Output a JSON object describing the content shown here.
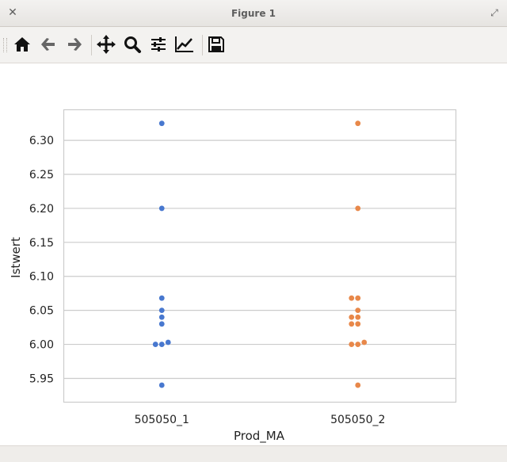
{
  "window": {
    "title": "Figure 1",
    "close_icon": "close-icon",
    "maximize_icon": "maximize-icon"
  },
  "toolbar": {
    "items": [
      {
        "name": "home",
        "icon": "home-icon"
      },
      {
        "name": "back",
        "icon": "arrow-left-icon"
      },
      {
        "name": "forward",
        "icon": "arrow-right-icon"
      },
      {
        "name": "pan",
        "icon": "move-icon"
      },
      {
        "name": "zoom",
        "icon": "search-icon"
      },
      {
        "name": "configure-subplots",
        "icon": "sliders-icon"
      },
      {
        "name": "edit-axis",
        "icon": "line-chart-icon"
      },
      {
        "name": "save",
        "icon": "save-icon"
      }
    ]
  },
  "chart_data": {
    "type": "scatter",
    "subtype": "swarm",
    "title": "",
    "xlabel": "Prod_MA",
    "ylabel": "Istwert",
    "categories": [
      "505050_1",
      "505050_2"
    ],
    "ylim": [
      5.915,
      6.345
    ],
    "yticks": [
      "5.95",
      "6.00",
      "6.05",
      "6.10",
      "6.15",
      "6.20",
      "6.25",
      "6.30"
    ],
    "grid": "horizontal",
    "series": [
      {
        "category": "505050_1",
        "color": "#4878cf",
        "values": [
          6.325,
          6.2,
          6.068,
          6.05,
          6.04,
          6.03,
          6.0,
          6.0,
          6.003,
          5.94
        ]
      },
      {
        "category": "505050_2",
        "color": "#e8884a",
        "values": [
          6.325,
          6.2,
          6.068,
          6.068,
          6.05,
          6.04,
          6.04,
          6.03,
          6.03,
          6.0,
          6.0,
          6.003,
          5.94
        ]
      }
    ]
  }
}
